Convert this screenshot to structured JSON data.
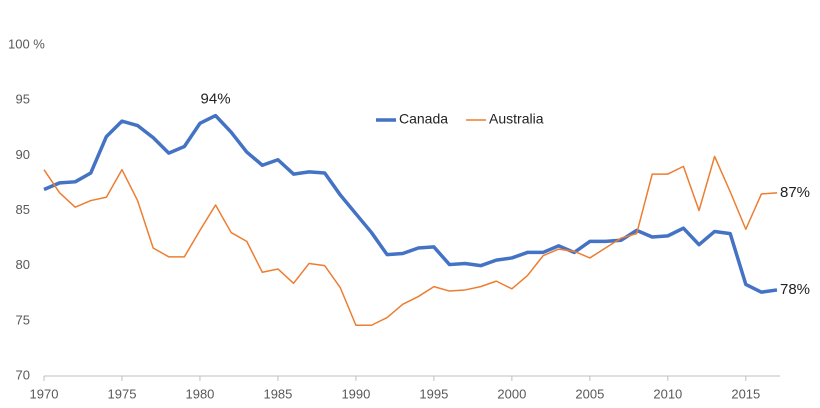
{
  "chart_data": {
    "type": "line",
    "x": [
      1970,
      1971,
      1972,
      1973,
      1974,
      1975,
      1976,
      1977,
      1978,
      1979,
      1980,
      1981,
      1982,
      1983,
      1984,
      1985,
      1986,
      1987,
      1988,
      1989,
      1990,
      1991,
      1992,
      1993,
      1994,
      1995,
      1996,
      1997,
      1998,
      1999,
      2000,
      2001,
      2002,
      2003,
      2004,
      2005,
      2006,
      2007,
      2008,
      2009,
      2010,
      2011,
      2012,
      2013,
      2014,
      2015,
      2016,
      2017
    ],
    "series": [
      {
        "name": "Canada",
        "color": "#4472c4",
        "width": 3.5,
        "values": [
          86.9,
          87.5,
          87.6,
          88.4,
          91.7,
          93.1,
          92.7,
          91.6,
          90.2,
          90.8,
          92.9,
          93.6,
          92.1,
          90.3,
          89.1,
          89.6,
          88.3,
          88.5,
          88.4,
          86.4,
          84.7,
          83.0,
          81.0,
          81.1,
          81.6,
          81.7,
          80.1,
          80.2,
          80.0,
          80.5,
          80.7,
          81.2,
          81.2,
          81.8,
          81.2,
          82.2,
          82.2,
          82.3,
          83.2,
          82.6,
          82.7,
          83.4,
          81.9,
          83.1,
          82.9,
          78.3,
          77.6,
          77.8
        ],
        "value_labels": [
          null,
          null,
          null,
          null,
          null,
          null,
          null,
          null,
          null,
          null,
          null,
          "94%",
          null,
          null,
          null,
          null,
          null,
          null,
          null,
          null,
          null,
          null,
          null,
          null,
          null,
          null,
          null,
          null,
          null,
          null,
          null,
          null,
          null,
          null,
          null,
          null,
          null,
          null,
          null,
          null,
          null,
          null,
          null,
          null,
          null,
          null,
          null,
          "78%"
        ]
      },
      {
        "name": "Australia",
        "color": "#ed7d31",
        "width": 1.5,
        "values": [
          88.7,
          86.6,
          85.3,
          85.9,
          86.2,
          88.7,
          85.9,
          81.6,
          80.8,
          80.8,
          83.2,
          85.5,
          83.0,
          82.2,
          79.4,
          79.7,
          78.4,
          80.2,
          80.0,
          78.0,
          74.6,
          74.6,
          75.3,
          76.5,
          77.2,
          78.1,
          77.7,
          77.8,
          78.1,
          78.6,
          77.9,
          79.1,
          80.9,
          81.5,
          81.3,
          80.7,
          81.6,
          82.5,
          82.9,
          88.3,
          88.3,
          89.0,
          85.0,
          89.9,
          86.7,
          83.3,
          86.5,
          86.6
        ],
        "value_labels": [
          null,
          null,
          null,
          null,
          null,
          null,
          null,
          null,
          null,
          null,
          null,
          null,
          null,
          null,
          null,
          null,
          null,
          null,
          null,
          null,
          null,
          null,
          null,
          null,
          null,
          null,
          null,
          null,
          null,
          null,
          null,
          null,
          null,
          null,
          null,
          null,
          null,
          null,
          null,
          null,
          null,
          null,
          null,
          null,
          null,
          null,
          null,
          "87%"
        ]
      }
    ],
    "xlim": [
      1970,
      2017
    ],
    "xticks": [
      1970,
      1975,
      1980,
      1985,
      1990,
      1995,
      2000,
      2005,
      2010,
      2015
    ],
    "ylim": [
      70,
      100
    ],
    "yticks": [
      70,
      75,
      80,
      85,
      90,
      95,
      {
        "value": 100,
        "label": "100 %"
      }
    ],
    "grid": false,
    "legend": "top-center"
  }
}
